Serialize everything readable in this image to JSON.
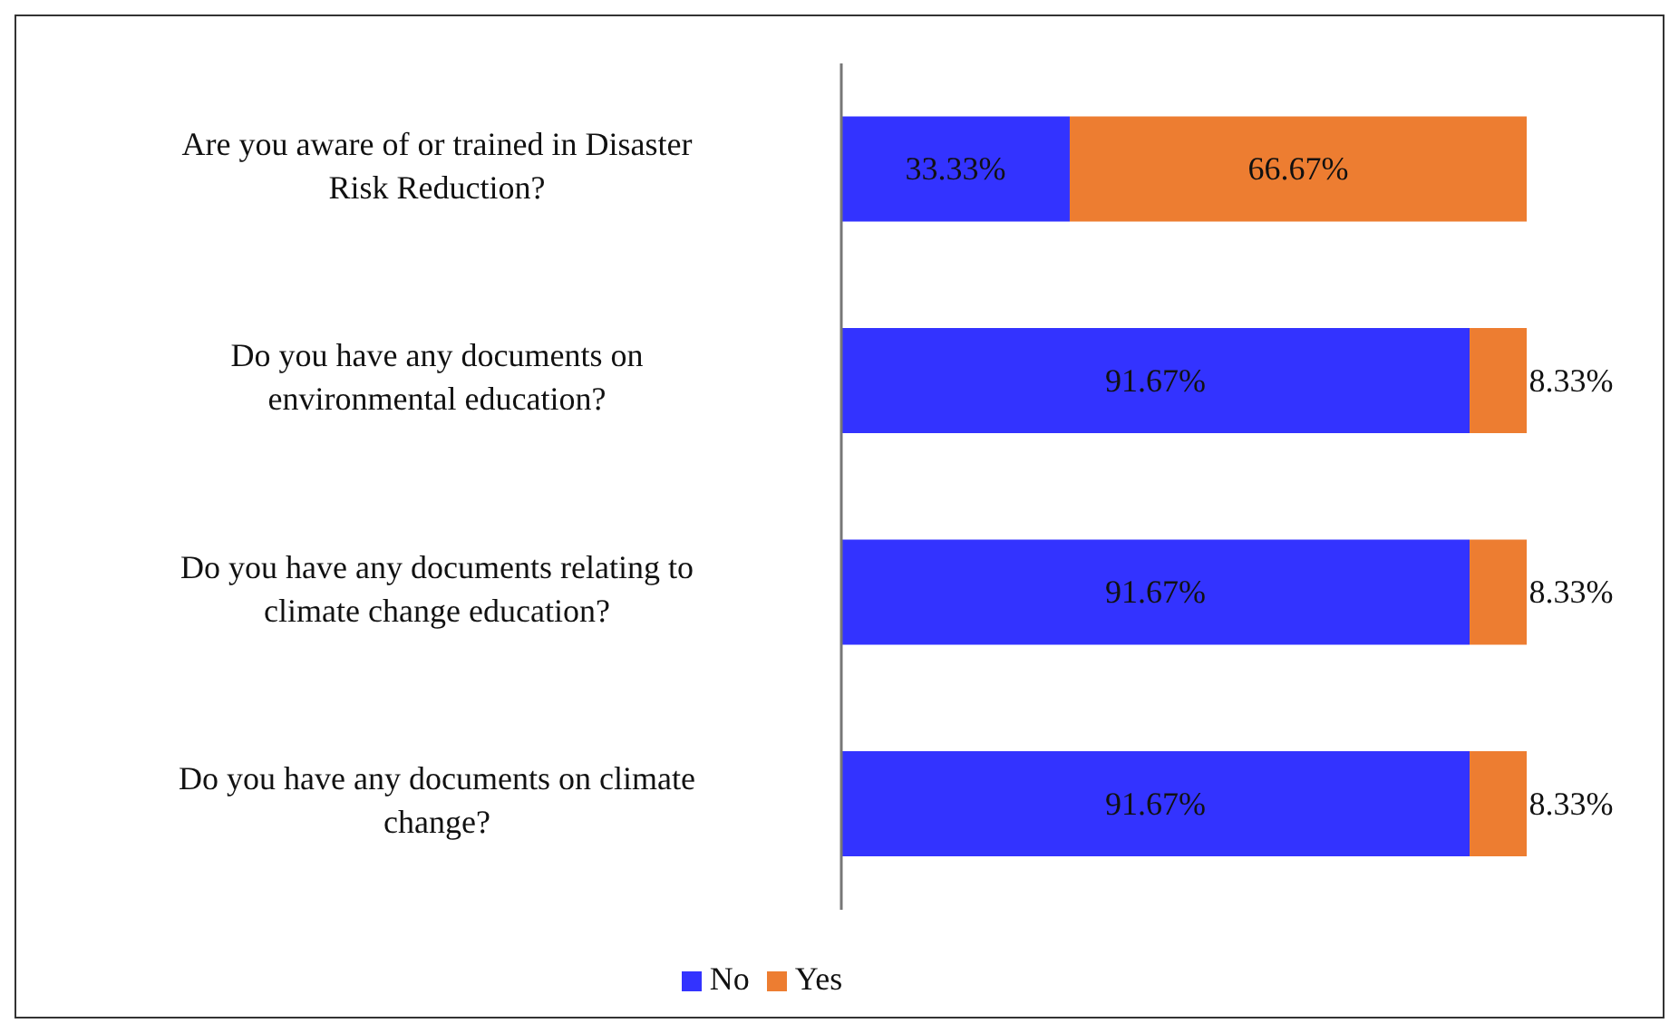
{
  "chart_data": {
    "type": "bar",
    "orientation": "horizontal",
    "stacked": true,
    "categories": [
      "Are you aware of or trained in Disaster Risk Reduction?",
      "Do you have any documents on environmental education?",
      "Do you have any documents relating to climate change education?",
      "Do you have any documents on climate change?"
    ],
    "series": [
      {
        "name": "No",
        "color": "#3333ff",
        "values": [
          33.33,
          91.67,
          91.67,
          91.67
        ],
        "value_labels": [
          "33.33%",
          "91.67%",
          "91.67%",
          "91.67%"
        ]
      },
      {
        "name": "Yes",
        "color": "#ed7d31",
        "values": [
          66.67,
          8.33,
          8.33,
          8.33
        ],
        "value_labels": [
          "66.67%",
          "8.33%",
          "8.33%",
          "8.33%"
        ]
      }
    ],
    "tick_labels": "y",
    "legend": "bottom"
  }
}
